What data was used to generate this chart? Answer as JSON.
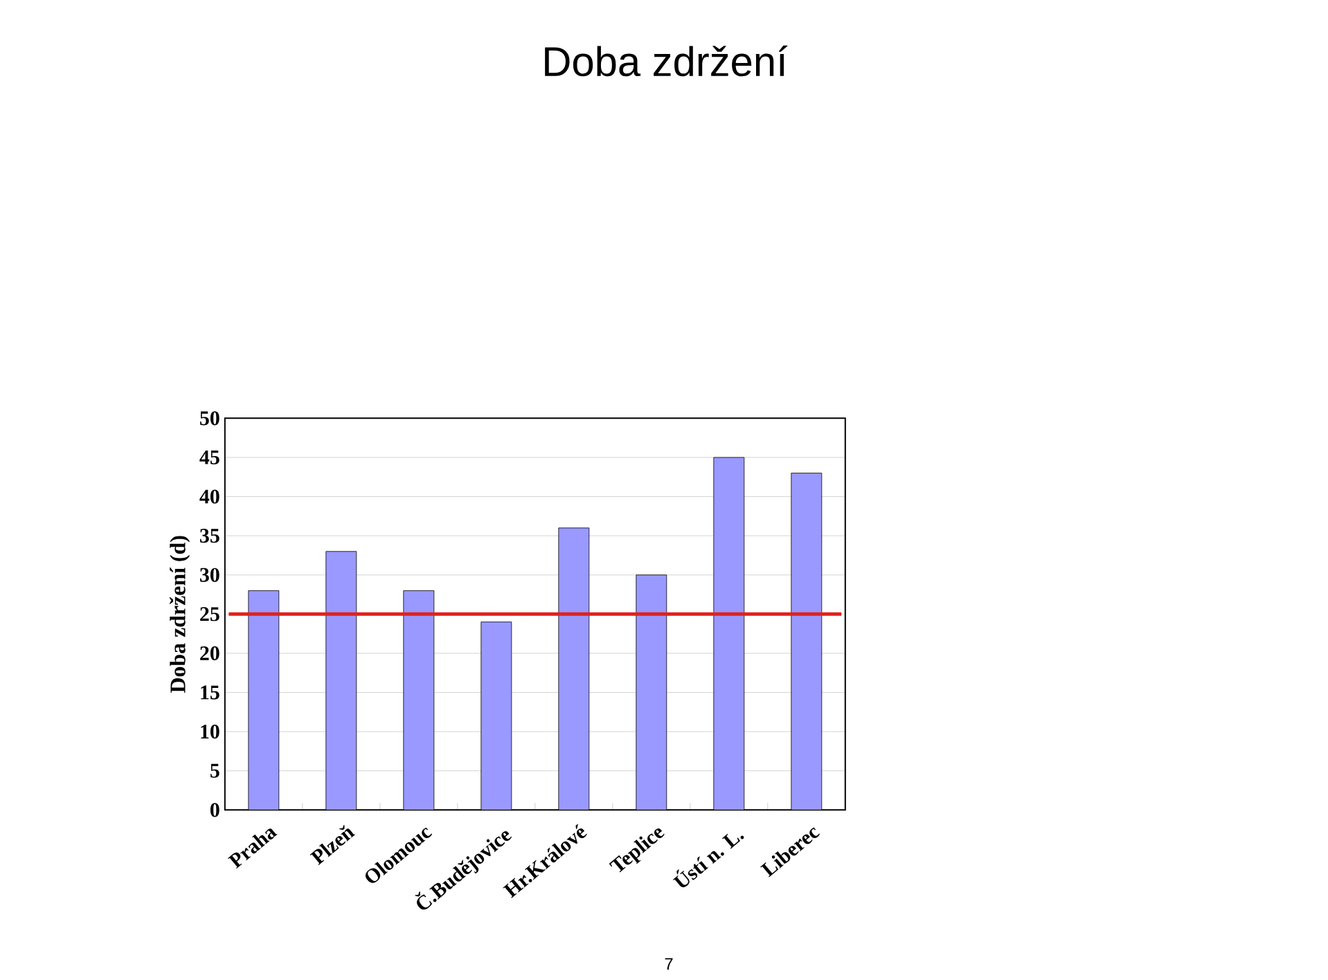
{
  "chart_data": {
    "type": "bar",
    "title": "Doba zdržení",
    "ylabel": "Doba zdržení (d)",
    "categories": [
      "Praha",
      "Plzeň",
      "Olomouc",
      "Č.Budějovice",
      "Hr.Králové",
      "Teplice",
      "Ústí n. L.",
      "Liberec"
    ],
    "values": [
      28,
      33,
      28,
      24,
      36,
      30,
      45,
      43
    ],
    "color": "#9999ff",
    "ylim": [
      0,
      50
    ],
    "yticks": [
      0,
      5,
      10,
      15,
      20,
      25,
      30,
      35,
      40,
      45,
      50
    ],
    "grid": "y",
    "ref_lines": [
      {
        "axis": "y",
        "value": 25,
        "color": "#e3201b"
      }
    ],
    "annotations": [
      "7"
    ]
  }
}
